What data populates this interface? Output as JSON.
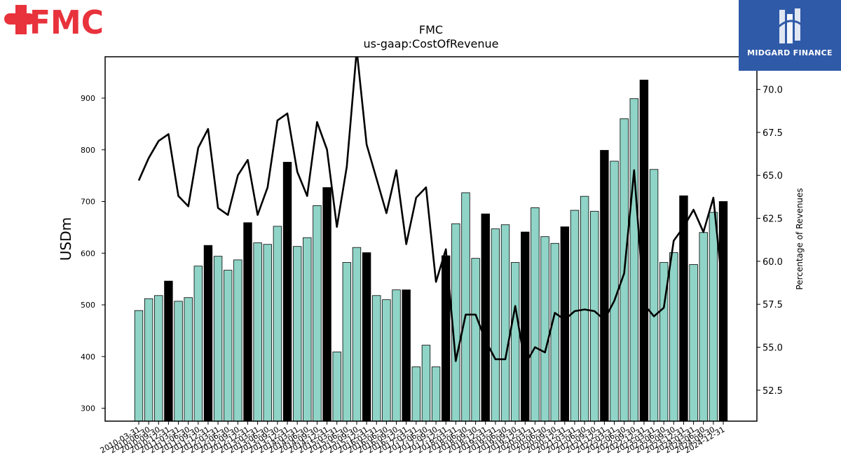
{
  "logo": {
    "text": "FMC",
    "color": "#e8323c"
  },
  "brand": {
    "name": "MIDGARD FINANCE",
    "color": "#2f5aa8"
  },
  "chart_data": {
    "type": "bar",
    "title": "FMC",
    "subtitle": "us-gaap:CostOfRevenue",
    "ylabel": "USDm",
    "y2label": "Percentage of Revenues",
    "ylim": [
      275,
      980
    ],
    "y2lim": [
      50.7,
      71.9
    ],
    "yticks": [
      300,
      400,
      500,
      600,
      700,
      800,
      900
    ],
    "y2ticks": [
      "52.5",
      "55.0",
      "57.5",
      "60.0",
      "62.5",
      "65.0",
      "67.5",
      "70.0"
    ],
    "bar_colors": {
      "quarter": "#8fd4c6",
      "year_end": "#000000"
    },
    "line_color": "#000000",
    "categories": [
      "2010-03-31",
      "2010-06-30",
      "2010-09-30",
      "2010-12-31",
      "2011-03-31",
      "2011-06-30",
      "2011-09-30",
      "2011-12-31",
      "2012-03-31",
      "2012-06-30",
      "2012-09-30",
      "2012-12-31",
      "2013-03-31",
      "2013-06-30",
      "2013-09-30",
      "2013-12-31",
      "2014-03-31",
      "2014-06-30",
      "2014-09-30",
      "2014-12-31",
      "2015-03-31",
      "2015-06-30",
      "2015-09-30",
      "2015-12-31",
      "2016-03-31",
      "2016-06-30",
      "2016-09-30",
      "2016-12-31",
      "2017-03-31",
      "2017-06-30",
      "2017-09-30",
      "2017-12-31",
      "2018-03-31",
      "2018-06-30",
      "2018-09-30",
      "2018-12-31",
      "2019-03-31",
      "2019-06-30",
      "2019-09-30",
      "2019-12-31",
      "2020-03-31",
      "2020-06-30",
      "2020-09-30",
      "2020-12-31",
      "2021-03-31",
      "2021-06-30",
      "2021-09-30",
      "2021-12-31",
      "2022-03-31",
      "2022-06-30",
      "2022-09-30",
      "2022-12-31",
      "2023-03-31",
      "2023-06-30",
      "2023-09-30",
      "2023-12-31",
      "2024-03-31",
      "2024-06-30",
      "2024-09-30",
      "2024-12-31"
    ],
    "series": [
      {
        "type": "bar",
        "values": [
          489,
          512,
          518,
          546,
          507,
          514,
          575,
          615,
          594,
          567,
          587,
          659,
          620,
          617,
          652,
          776,
          613,
          630,
          692,
          727,
          409,
          582,
          611,
          601,
          518,
          510,
          529,
          529,
          380,
          422,
          380,
          595,
          657,
          717,
          590,
          676,
          647,
          655,
          582,
          641,
          688,
          632,
          619,
          651,
          683,
          710,
          681,
          799,
          778,
          860,
          899,
          935,
          762,
          582,
          601,
          711,
          578,
          640,
          679,
          700
        ]
      },
      {
        "type": "line",
        "values": [
          64.7,
          66.0,
          67.0,
          67.4,
          63.8,
          63.2,
          66.6,
          67.7,
          63.1,
          62.7,
          65.0,
          65.9,
          62.7,
          64.3,
          68.2,
          68.6,
          65.2,
          63.8,
          68.1,
          66.5,
          62.0,
          65.5,
          72.3,
          66.8,
          64.8,
          62.8,
          65.3,
          61.0,
          63.7,
          64.3,
          58.8,
          60.7,
          54.2,
          56.9,
          56.9,
          55.4,
          54.3,
          54.3,
          57.4,
          54.0,
          55.0,
          54.7,
          57.0,
          56.6,
          57.1,
          57.2,
          57.1,
          56.6,
          57.7,
          59.3,
          65.3,
          57.5,
          56.8,
          57.3,
          61.2,
          62.0,
          63.0,
          61.7,
          63.7,
          58.0
        ]
      }
    ]
  }
}
